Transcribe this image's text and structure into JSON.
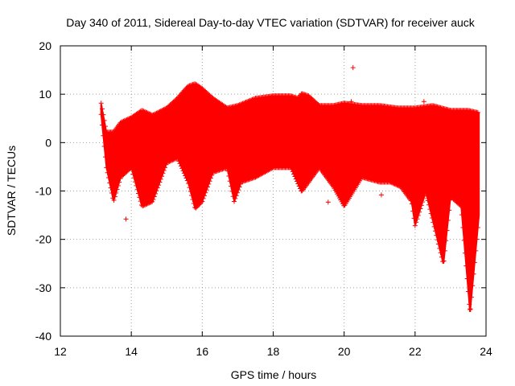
{
  "chart_data": {
    "type": "scatter",
    "title": "Day 340 of 2011, Sidereal Day-to-day VTEC variation (SDTVAR) for receiver auck",
    "xlabel": "GPS time / hours",
    "ylabel": "SDTVAR / TECUs",
    "xlim": [
      12,
      24
    ],
    "ylim": [
      -40,
      20
    ],
    "xticks": [
      12,
      14,
      16,
      18,
      20,
      22,
      24
    ],
    "yticks": [
      -40,
      -30,
      -20,
      -10,
      0,
      10,
      20
    ],
    "xtick_labels": [
      "12",
      "14",
      "16",
      "18",
      "20",
      "22",
      "24"
    ],
    "ytick_labels": [
      "-40",
      "-30",
      "-20",
      "-10",
      "0",
      "10",
      "20"
    ],
    "grid": true,
    "marker": "+",
    "series": [
      {
        "name": "SDTVAR",
        "color": "#ff0000",
        "upper_envelope": [
          [
            13.15,
            8
          ],
          [
            13.3,
            2
          ],
          [
            13.5,
            2
          ],
          [
            13.7,
            4
          ],
          [
            14.0,
            5
          ],
          [
            14.3,
            6.5
          ],
          [
            14.6,
            5.5
          ],
          [
            15.0,
            7
          ],
          [
            15.3,
            9
          ],
          [
            15.6,
            11.5
          ],
          [
            15.8,
            12
          ],
          [
            16.0,
            11
          ],
          [
            16.3,
            9
          ],
          [
            16.7,
            7
          ],
          [
            17.0,
            7.5
          ],
          [
            17.5,
            9
          ],
          [
            18.0,
            9.5
          ],
          [
            18.5,
            9.5
          ],
          [
            18.7,
            9
          ],
          [
            18.8,
            10
          ],
          [
            19.0,
            9.5
          ],
          [
            19.3,
            7.5
          ],
          [
            19.7,
            7.5
          ],
          [
            20.0,
            8
          ],
          [
            20.5,
            7.5
          ],
          [
            21.0,
            7.5
          ],
          [
            21.5,
            7
          ],
          [
            22.0,
            7
          ],
          [
            22.5,
            7.5
          ],
          [
            23.0,
            6.5
          ],
          [
            23.5,
            6.5
          ],
          [
            23.8,
            6
          ]
        ],
        "lower_envelope": [
          [
            13.15,
            6
          ],
          [
            13.3,
            -5
          ],
          [
            13.5,
            -12
          ],
          [
            13.7,
            -7
          ],
          [
            14.0,
            -5
          ],
          [
            14.3,
            -13
          ],
          [
            14.6,
            -12
          ],
          [
            15.0,
            -4
          ],
          [
            15.3,
            -3
          ],
          [
            15.6,
            -8
          ],
          [
            15.8,
            -13.5
          ],
          [
            16.0,
            -12
          ],
          [
            16.3,
            -6
          ],
          [
            16.7,
            -5
          ],
          [
            16.9,
            -12
          ],
          [
            17.1,
            -8
          ],
          [
            17.5,
            -7
          ],
          [
            18.0,
            -5
          ],
          [
            18.5,
            -5
          ],
          [
            18.8,
            -10
          ],
          [
            19.3,
            -5
          ],
          [
            19.7,
            -9
          ],
          [
            20.0,
            -13
          ],
          [
            20.5,
            -7
          ],
          [
            21.0,
            -8
          ],
          [
            21.3,
            -8
          ],
          [
            21.6,
            -9
          ],
          [
            21.9,
            -12
          ],
          [
            22.0,
            -17
          ],
          [
            22.3,
            -10
          ],
          [
            22.8,
            -25
          ],
          [
            23.0,
            -11
          ],
          [
            23.3,
            -13
          ],
          [
            23.55,
            -35
          ],
          [
            23.8,
            -15
          ]
        ],
        "outliers": [
          [
            20.25,
            15.5
          ],
          [
            13.85,
            -15.8
          ],
          [
            19.55,
            -12.3
          ],
          [
            21.05,
            -10.8
          ],
          [
            20.2,
            8.5
          ],
          [
            22.25,
            8.5
          ],
          [
            23.55,
            -34.5
          ]
        ]
      }
    ]
  }
}
